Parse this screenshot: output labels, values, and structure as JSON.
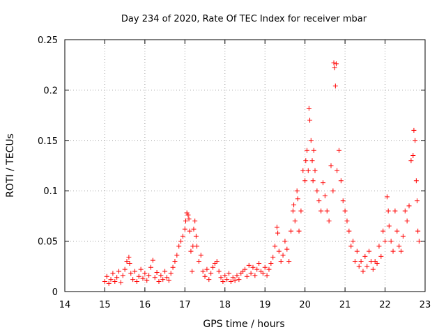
{
  "chart_data": {
    "type": "scatter",
    "title": "Day 234 of 2020, Rate Of TEC Index for receiver mbar",
    "xlabel": "GPS time / hours",
    "ylabel": "ROTI / TECUs",
    "xlim": [
      14,
      23
    ],
    "ylim": [
      0,
      0.25
    ],
    "x_ticks": [
      14,
      15,
      16,
      17,
      18,
      19,
      20,
      21,
      22,
      23
    ],
    "x_tick_labels": [
      "14",
      "15",
      "16",
      "17",
      "18",
      "19",
      "20",
      "21",
      "22",
      "23"
    ],
    "y_ticks": [
      0,
      0.05,
      0.1,
      0.15,
      0.2,
      0.25
    ],
    "y_tick_labels": [
      "0",
      "0.05",
      "0.1",
      "0.15",
      "0.2",
      "0.25"
    ],
    "grid": true,
    "marker": "+",
    "marker_color": "#ff0000",
    "series": [
      {
        "points": [
          [
            15.0,
            0.01
          ],
          [
            15.05,
            0.015
          ],
          [
            15.1,
            0.008
          ],
          [
            15.15,
            0.012
          ],
          [
            15.2,
            0.018
          ],
          [
            15.25,
            0.01
          ],
          [
            15.3,
            0.014
          ],
          [
            15.35,
            0.02
          ],
          [
            15.4,
            0.009
          ],
          [
            15.45,
            0.016
          ],
          [
            15.5,
            0.022
          ],
          [
            15.55,
            0.03
          ],
          [
            15.6,
            0.034
          ],
          [
            15.62,
            0.028
          ],
          [
            15.65,
            0.018
          ],
          [
            15.7,
            0.012
          ],
          [
            15.75,
            0.02
          ],
          [
            15.8,
            0.01
          ],
          [
            15.85,
            0.015
          ],
          [
            15.9,
            0.022
          ],
          [
            15.95,
            0.013
          ],
          [
            16.0,
            0.018
          ],
          [
            16.05,
            0.011
          ],
          [
            16.1,
            0.016
          ],
          [
            16.15,
            0.024
          ],
          [
            16.2,
            0.031
          ],
          [
            16.25,
            0.014
          ],
          [
            16.3,
            0.019
          ],
          [
            16.35,
            0.01
          ],
          [
            16.4,
            0.016
          ],
          [
            16.45,
            0.012
          ],
          [
            16.5,
            0.02
          ],
          [
            16.55,
            0.014
          ],
          [
            16.6,
            0.011
          ],
          [
            16.65,
            0.018
          ],
          [
            16.7,
            0.024
          ],
          [
            16.75,
            0.03
          ],
          [
            16.8,
            0.036
          ],
          [
            16.85,
            0.045
          ],
          [
            16.9,
            0.05
          ],
          [
            16.95,
            0.055
          ],
          [
            17.0,
            0.062
          ],
          [
            17.02,
            0.07
          ],
          [
            17.05,
            0.078
          ],
          [
            17.08,
            0.076
          ],
          [
            17.1,
            0.072
          ],
          [
            17.12,
            0.06
          ],
          [
            17.15,
            0.04
          ],
          [
            17.18,
            0.02
          ],
          [
            17.2,
            0.045
          ],
          [
            17.22,
            0.062
          ],
          [
            17.25,
            0.07
          ],
          [
            17.28,
            0.055
          ],
          [
            17.3,
            0.045
          ],
          [
            17.35,
            0.03
          ],
          [
            17.4,
            0.036
          ],
          [
            17.45,
            0.02
          ],
          [
            17.5,
            0.015
          ],
          [
            17.55,
            0.022
          ],
          [
            17.6,
            0.012
          ],
          [
            17.65,
            0.018
          ],
          [
            17.7,
            0.024
          ],
          [
            17.75,
            0.028
          ],
          [
            17.8,
            0.03
          ],
          [
            17.85,
            0.02
          ],
          [
            17.9,
            0.014
          ],
          [
            17.95,
            0.01
          ],
          [
            18.0,
            0.016
          ],
          [
            18.05,
            0.012
          ],
          [
            18.1,
            0.018
          ],
          [
            18.15,
            0.01
          ],
          [
            18.2,
            0.014
          ],
          [
            18.25,
            0.011
          ],
          [
            18.3,
            0.016
          ],
          [
            18.35,
            0.012
          ],
          [
            18.4,
            0.018
          ],
          [
            18.45,
            0.02
          ],
          [
            18.5,
            0.022
          ],
          [
            18.55,
            0.015
          ],
          [
            18.6,
            0.026
          ],
          [
            18.65,
            0.018
          ],
          [
            18.7,
            0.024
          ],
          [
            18.75,
            0.016
          ],
          [
            18.8,
            0.022
          ],
          [
            18.85,
            0.028
          ],
          [
            18.9,
            0.02
          ],
          [
            18.95,
            0.018
          ],
          [
            19.0,
            0.024
          ],
          [
            19.05,
            0.016
          ],
          [
            19.1,
            0.022
          ],
          [
            19.15,
            0.028
          ],
          [
            19.2,
            0.034
          ],
          [
            19.25,
            0.045
          ],
          [
            19.3,
            0.064
          ],
          [
            19.32,
            0.058
          ],
          [
            19.35,
            0.04
          ],
          [
            19.4,
            0.03
          ],
          [
            19.45,
            0.036
          ],
          [
            19.5,
            0.05
          ],
          [
            19.55,
            0.042
          ],
          [
            19.6,
            0.03
          ],
          [
            19.65,
            0.06
          ],
          [
            19.7,
            0.08
          ],
          [
            19.72,
            0.086
          ],
          [
            19.75,
            0.07
          ],
          [
            19.8,
            0.1
          ],
          [
            19.82,
            0.092
          ],
          [
            19.85,
            0.06
          ],
          [
            19.9,
            0.08
          ],
          [
            19.95,
            0.12
          ],
          [
            20.0,
            0.11
          ],
          [
            20.02,
            0.13
          ],
          [
            20.05,
            0.14
          ],
          [
            20.08,
            0.12
          ],
          [
            20.1,
            0.182
          ],
          [
            20.12,
            0.17
          ],
          [
            20.15,
            0.15
          ],
          [
            20.18,
            0.13
          ],
          [
            20.2,
            0.11
          ],
          [
            20.22,
            0.14
          ],
          [
            20.25,
            0.12
          ],
          [
            20.3,
            0.1
          ],
          [
            20.35,
            0.09
          ],
          [
            20.4,
            0.08
          ],
          [
            20.45,
            0.108
          ],
          [
            20.5,
            0.095
          ],
          [
            20.55,
            0.08
          ],
          [
            20.6,
            0.07
          ],
          [
            20.65,
            0.125
          ],
          [
            20.7,
            0.1
          ],
          [
            20.72,
            0.227
          ],
          [
            20.74,
            0.222
          ],
          [
            20.76,
            0.204
          ],
          [
            20.78,
            0.226
          ],
          [
            20.8,
            0.12
          ],
          [
            20.85,
            0.14
          ],
          [
            20.9,
            0.11
          ],
          [
            20.95,
            0.09
          ],
          [
            21.0,
            0.08
          ],
          [
            21.05,
            0.07
          ],
          [
            21.1,
            0.06
          ],
          [
            21.15,
            0.045
          ],
          [
            21.2,
            0.05
          ],
          [
            21.25,
            0.03
          ],
          [
            21.3,
            0.04
          ],
          [
            21.35,
            0.025
          ],
          [
            21.4,
            0.03
          ],
          [
            21.45,
            0.02
          ],
          [
            21.5,
            0.035
          ],
          [
            21.55,
            0.025
          ],
          [
            21.6,
            0.04
          ],
          [
            21.65,
            0.03
          ],
          [
            21.7,
            0.022
          ],
          [
            21.75,
            0.03
          ],
          [
            21.8,
            0.028
          ],
          [
            21.85,
            0.045
          ],
          [
            21.9,
            0.035
          ],
          [
            21.95,
            0.06
          ],
          [
            22.0,
            0.05
          ],
          [
            22.05,
            0.094
          ],
          [
            22.08,
            0.08
          ],
          [
            22.1,
            0.065
          ],
          [
            22.15,
            0.05
          ],
          [
            22.2,
            0.04
          ],
          [
            22.25,
            0.08
          ],
          [
            22.3,
            0.06
          ],
          [
            22.35,
            0.045
          ],
          [
            22.4,
            0.04
          ],
          [
            22.45,
            0.055
          ],
          [
            22.5,
            0.08
          ],
          [
            22.55,
            0.07
          ],
          [
            22.6,
            0.085
          ],
          [
            22.65,
            0.13
          ],
          [
            22.7,
            0.135
          ],
          [
            22.72,
            0.16
          ],
          [
            22.75,
            0.15
          ],
          [
            22.78,
            0.11
          ],
          [
            22.8,
            0.09
          ],
          [
            22.82,
            0.06
          ],
          [
            22.85,
            0.05
          ]
        ]
      }
    ]
  }
}
